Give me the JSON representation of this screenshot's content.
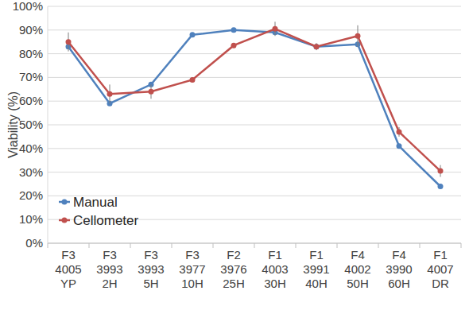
{
  "chart_data": {
    "type": "line",
    "y_label": "Viability (%)",
    "categories": [
      "F3 4005 YP",
      "F3 3993 2H",
      "F3 3993 5H",
      "F3 3977 10H",
      "F2 3976 25H",
      "F1 4003 30H",
      "F1 3991 40H",
      "F4 4002 50H",
      "F4 3990 60H",
      "F1 4007 DR"
    ],
    "series": [
      {
        "name": "Manual",
        "color": "#4f81bd",
        "marker": "circle",
        "values": [
          83,
          59,
          67,
          88,
          90,
          89,
          83,
          84,
          41,
          24
        ]
      },
      {
        "name": "Cellometer",
        "color": "#c0504d",
        "marker": "circle",
        "values": [
          85,
          63,
          64,
          69,
          83.5,
          90.5,
          83,
          87.5,
          47,
          30.5
        ],
        "errors": [
          4,
          4,
          3,
          0,
          0,
          3,
          1.5,
          4.5,
          2,
          2.5
        ]
      }
    ],
    "ylim": [
      0,
      100
    ],
    "yticks": [
      {
        "value": 0,
        "label": "0%"
      },
      {
        "value": 10,
        "label": "10%"
      },
      {
        "value": 20,
        "label": "20%"
      },
      {
        "value": 30,
        "label": "30%"
      },
      {
        "value": 40,
        "label": "40%"
      },
      {
        "value": 50,
        "label": "50%"
      },
      {
        "value": 60,
        "label": "60%"
      },
      {
        "value": 70,
        "label": "70%"
      },
      {
        "value": 80,
        "label": "80%"
      },
      {
        "value": 90,
        "label": "90%"
      },
      {
        "value": 100,
        "label": "100%"
      }
    ],
    "grid": true,
    "legend": "bottom-left"
  }
}
